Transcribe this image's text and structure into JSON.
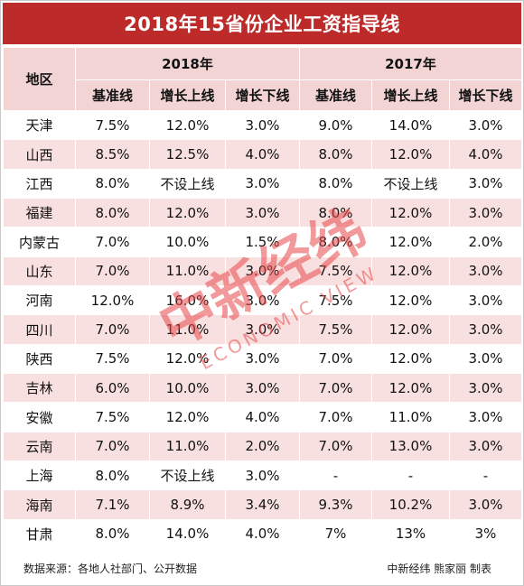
{
  "title": "2018年15省份企业工资指导线",
  "header": {
    "region": "地区",
    "year_2018": "2018年",
    "year_2017": "2017年",
    "cols_2018": [
      "基准线",
      "增长上线",
      "增长下线"
    ],
    "cols_2017": [
      "基准线",
      "增长上线",
      "增长下线"
    ]
  },
  "rows": [
    [
      "天津",
      "7.5%",
      "12.0%",
      "3.0%",
      "9.0%",
      "14.0%",
      "3.0%"
    ],
    [
      "山西",
      "8.5%",
      "12.5%",
      "4.0%",
      "8.0%",
      "12.0%",
      "4.0%"
    ],
    [
      "江西",
      "8.0%",
      "不设上线",
      "3.0%",
      "8.0%",
      "不设上线",
      "3.0%"
    ],
    [
      "福建",
      "8.0%",
      "12.0%",
      "3.0%",
      "8.0%",
      "12.0%",
      "3.0%"
    ],
    [
      "内蒙古",
      "7.0%",
      "10.0%",
      "1.5%",
      "8.0%",
      "12.0%",
      "2.0%"
    ],
    [
      "山东",
      "7.0%",
      "11.0%",
      "3.0%",
      "7.5%",
      "12.0%",
      "3.0%"
    ],
    [
      "河南",
      "12.0%",
      "16.0%",
      "3.0%",
      "7.5%",
      "12.0%",
      "3.0%"
    ],
    [
      "四川",
      "7.0%",
      "11.0%",
      "3.0%",
      "7.5%",
      "12.0%",
      "3.0%"
    ],
    [
      "陕西",
      "7.5%",
      "12.0%",
      "3.0%",
      "7.0%",
      "12.0%",
      "3.0%"
    ],
    [
      "吉林",
      "6.0%",
      "10.0%",
      "3.0%",
      "7.0%",
      "12.0%",
      "3.0%"
    ],
    [
      "安徽",
      "7.5%",
      "12.0%",
      "4.0%",
      "7.0%",
      "11.0%",
      "3.0%"
    ],
    [
      "云南",
      "7.0%",
      "11.0%",
      "2.0%",
      "7.0%",
      "13.0%",
      "3.0%"
    ],
    [
      "上海",
      "8.0%",
      "不设上线",
      "3.0%",
      "-",
      "-",
      "-"
    ],
    [
      "海南",
      "7.1%",
      "8.9%",
      "3.4%",
      "9.3%",
      "10.2%",
      "3.0%"
    ],
    [
      "甘肃",
      "8.0%",
      "14.0%",
      "4.0%",
      "7%",
      "13%",
      "3%"
    ]
  ],
  "footer": {
    "source": "数据来源：各地人社部门、公开数据",
    "credit": "中新经纬 熊家丽 制表"
  },
  "watermark": {
    "cn": "中新经纬",
    "en": "ECONOMIC VIEW",
    "color": "#e8484a"
  }
}
